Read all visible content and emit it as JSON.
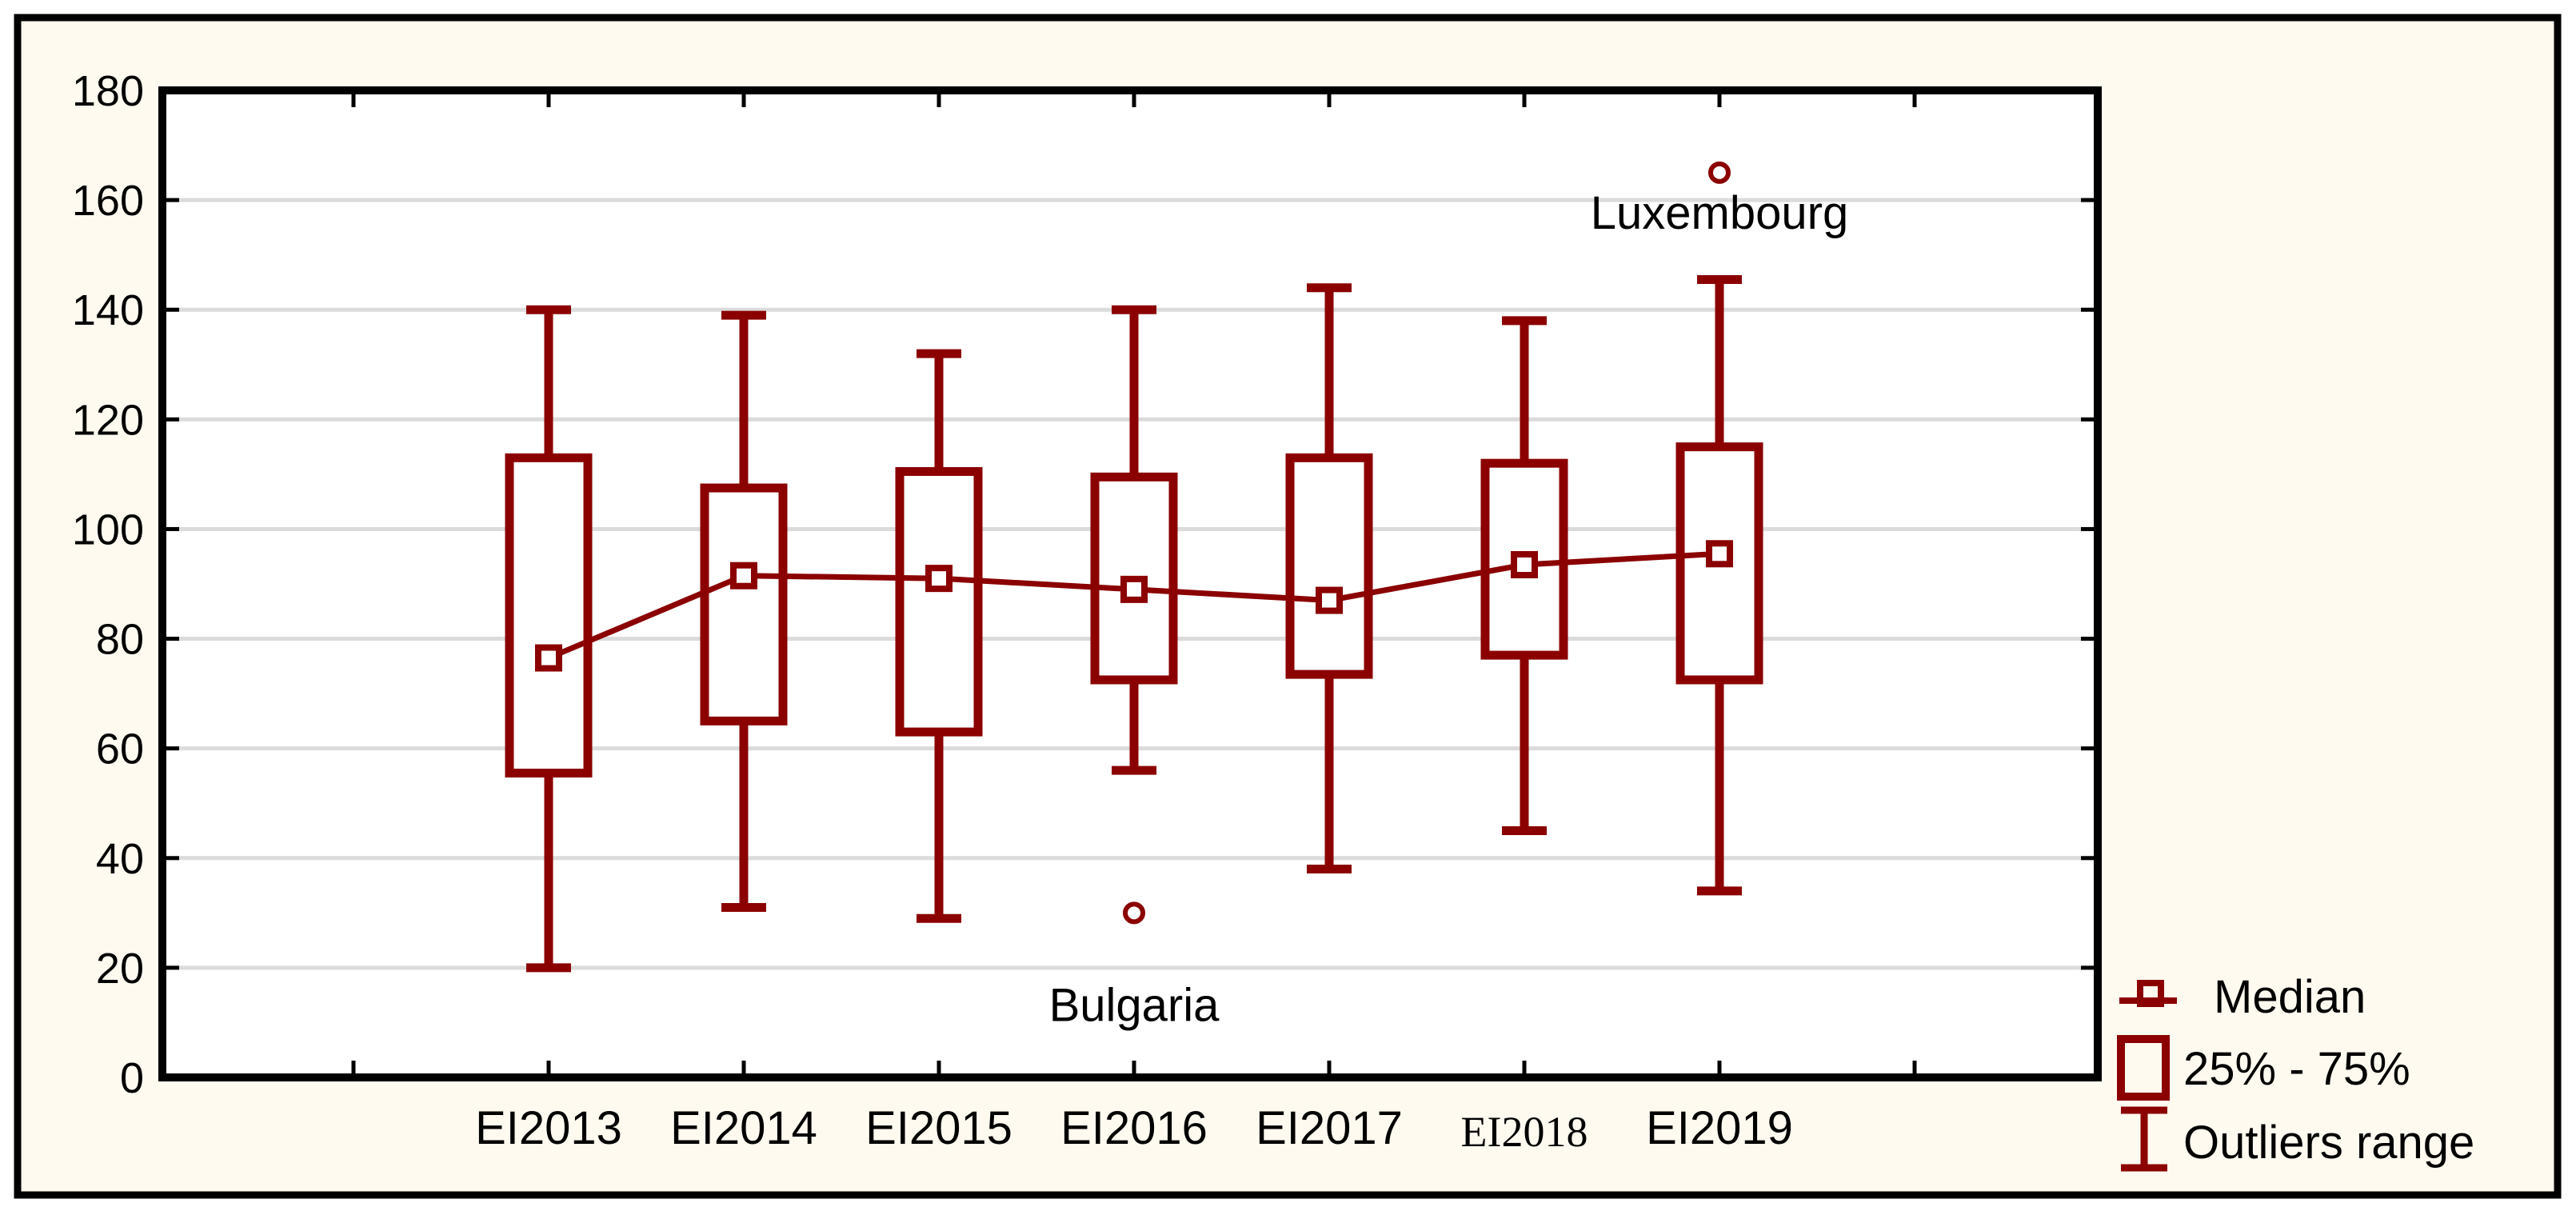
{
  "colors": {
    "series": "#8B0000",
    "frame_background": "#FFFAF0",
    "plot_background": "#FFFFFF",
    "gridline": "#DBDBDB",
    "axis": "#000000",
    "text": "#000000",
    "outer_margin": "#FFFFFF"
  },
  "chart_data": {
    "type": "box",
    "title": "",
    "categories": [
      "EI2013",
      "EI2014",
      "EI2015",
      "EI2016",
      "EI2017",
      "EI2018",
      "EI2019"
    ],
    "ylim": [
      0,
      180
    ],
    "yticks": [
      0,
      20,
      40,
      60,
      80,
      100,
      120,
      140,
      160,
      180
    ],
    "grid": "horizontal-light-gray",
    "series": [
      {
        "category": "EI2013",
        "whisker_low": 20,
        "q1": 55.5,
        "median": 76.5,
        "q3": 113,
        "whisker_high": 140,
        "outliers": []
      },
      {
        "category": "EI2014",
        "whisker_low": 31,
        "q1": 65,
        "median": 91.5,
        "q3": 107.5,
        "whisker_high": 139,
        "outliers": []
      },
      {
        "category": "EI2015",
        "whisker_low": 29,
        "q1": 63,
        "median": 91,
        "q3": 110.5,
        "whisker_high": 132,
        "outliers": []
      },
      {
        "category": "EI2016",
        "whisker_low": 56,
        "q1": 72.5,
        "median": 89,
        "q3": 109.5,
        "whisker_high": 140,
        "outliers": [
          {
            "value": 30,
            "label": "Bulgaria",
            "label_offset_y": 135
          }
        ]
      },
      {
        "category": "EI2017",
        "whisker_low": 38,
        "q1": 73.5,
        "median": 87,
        "q3": 113,
        "whisker_high": 144,
        "outliers": []
      },
      {
        "category": "EI2018",
        "whisker_low": 45,
        "q1": 77,
        "median": 93.5,
        "q3": 112,
        "whisker_high": 138,
        "outliers": []
      },
      {
        "category": "EI2019",
        "whisker_low": 34,
        "q1": 72.5,
        "median": 95.5,
        "q3": 115,
        "whisker_high": 145.5,
        "outliers": [
          {
            "value": 165,
            "label": "Luxembourg",
            "label_offset_y": 70
          }
        ]
      }
    ],
    "median_line_values": [
      76.5,
      91.5,
      91,
      89,
      87,
      93.5,
      95.5
    ],
    "legend": {
      "position": "bottom-right",
      "items": [
        {
          "icon": "median-marker",
          "label": "Median"
        },
        {
          "icon": "box-iqr",
          "label": "25% - 75%"
        },
        {
          "icon": "whisker-range",
          "label": "Outliers range"
        }
      ]
    },
    "layout_hints": {
      "serif_category_index": 5,
      "legend_inside_frame": true,
      "ticks_inside": true
    }
  }
}
